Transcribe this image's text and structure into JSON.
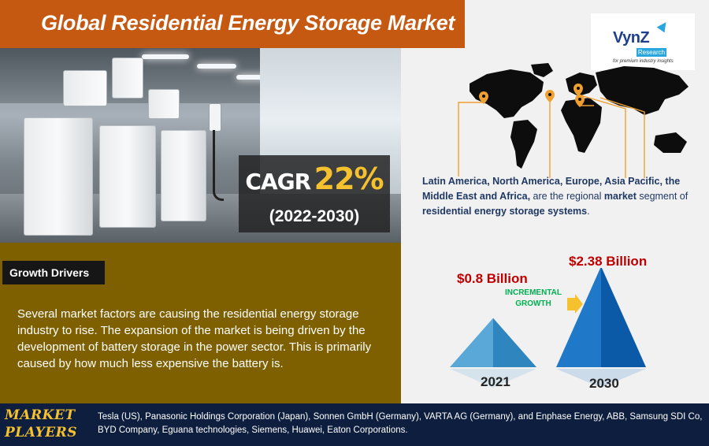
{
  "title": "Global Residential Energy Storage Market",
  "logo": {
    "name": "VynZ",
    "badge": "Research",
    "tagline": "for premium industry insights"
  },
  "cagr": {
    "label": "CAGR",
    "value": "22%",
    "period": "(2022-2030)"
  },
  "regions": {
    "names": "Latin America, North America, Europe, Asia Pacific, the Middle East and Africa,",
    "mid": " are the regional ",
    "market": "market",
    "segment_prefix": " segment of ",
    "segment": "residential energy storage systems",
    "end": "."
  },
  "growth_drivers": {
    "heading": "Growth Drivers",
    "text": "Several market factors are causing the residential energy storage industry to rise. The expansion of the market is being driven by the development of battery storage in the power sector. This is primarily caused by how much less expensive the battery is."
  },
  "chart_data": {
    "type": "bar",
    "categories": [
      "2021",
      "2030"
    ],
    "values": [
      0.8,
      2.38
    ],
    "value_labels": [
      "$0.8 Billion",
      "$2.38 Billion"
    ],
    "annotation": "INCREMENTAL GROWTH"
  },
  "market_players": {
    "label_line1": "MARKET",
    "label_line2": "PLAYERS",
    "text": "Tesla (US), Panasonic Holdings Corporation (Japan), Sonnen GmbH (Germany), VARTA AG (Germany), and Enphase Energy, ABB, Samsung SDI Co, BYD Company, Eguana technologies, Siemens, Huawei, Eaton Corporations."
  },
  "colors": {
    "banner": "#c65911",
    "drivers_panel": "#7f6000",
    "players_bar": "#0e1e3e",
    "accent_yellow": "#f6c12e",
    "value_red": "#c00000",
    "growth_green": "#00b050",
    "pin_orange": "#f0a030"
  },
  "icons": [
    "location-pin-icon",
    "arrow-right-icon"
  ]
}
